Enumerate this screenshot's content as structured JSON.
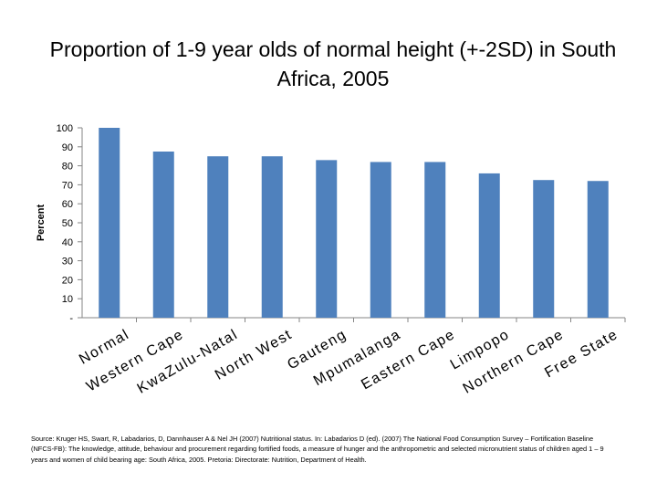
{
  "chart_data": {
    "type": "bar",
    "title": "Proportion of 1-9 year olds of normal height (+-2SD) in South Africa, 2005",
    "xlabel": "",
    "ylabel": "Percent",
    "ylim": [
      0,
      100
    ],
    "yticks": [
      "-",
      "10",
      "20",
      "30",
      "40",
      "50",
      "60",
      "70",
      "80",
      "90",
      "100"
    ],
    "grid": false,
    "categories": [
      "Normal",
      "Western Cape",
      "KwaZulu-Natal",
      "North West",
      "Gauteng",
      "Mpumalanga",
      "Eastern Cape",
      "Limpopo",
      "Northern Cape",
      "Free State"
    ],
    "values": [
      100,
      87.5,
      85,
      85,
      83,
      82,
      82,
      76,
      72.5,
      72
    ],
    "bar_color": "#4f81bd"
  },
  "source": "Source: Kruger HS, Swart, R, Labadarios, D, Dannhauser A & Nel JH (2007) Nutritional status. In: Labadarios D (ed). (2007) The National Food Consumption Survey – Fortification Baseline (NFCS-FB): The knowledge, attitude, behaviour and procurement regarding fortified foods, a measure of hunger and the anthropometric and selected micronutrient status of children aged 1 – 9 years and women of child bearing age: South Africa, 2005. Pretoria: Directorate: Nutrition, Department of Health."
}
